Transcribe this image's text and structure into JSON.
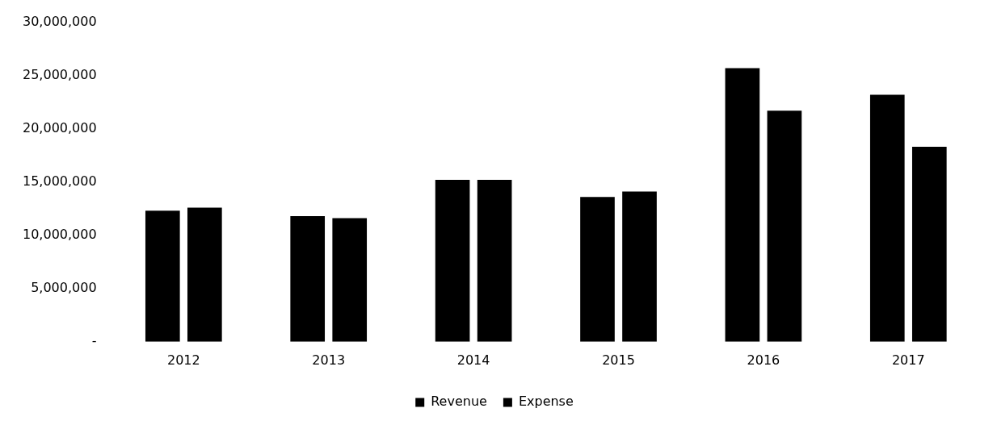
{
  "chart_data": {
    "type": "bar",
    "categories": [
      "2012",
      "2013",
      "2014",
      "2015",
      "2016",
      "2017"
    ],
    "series": [
      {
        "name": "Revenue",
        "color": "#000000",
        "values": [
          12300000,
          11800000,
          15200000,
          13600000,
          25700000,
          23200000
        ]
      },
      {
        "name": "Expense",
        "color": "#000000",
        "values": [
          12600000,
          11600000,
          15200000,
          14100000,
          21700000,
          18300000
        ]
      }
    ],
    "ylim": [
      0,
      30000000
    ],
    "yticks": [
      {
        "value": 0,
        "label": "-"
      },
      {
        "value": 5000000,
        "label": "5,000,000"
      },
      {
        "value": 10000000,
        "label": "10,000,000"
      },
      {
        "value": 15000000,
        "label": "15,000,000"
      },
      {
        "value": 20000000,
        "label": "20,000,000"
      },
      {
        "value": 25000000,
        "label": "25,000,000"
      },
      {
        "value": 30000000,
        "label": "30,000,000"
      }
    ],
    "grid": false,
    "legend": "bottom"
  }
}
